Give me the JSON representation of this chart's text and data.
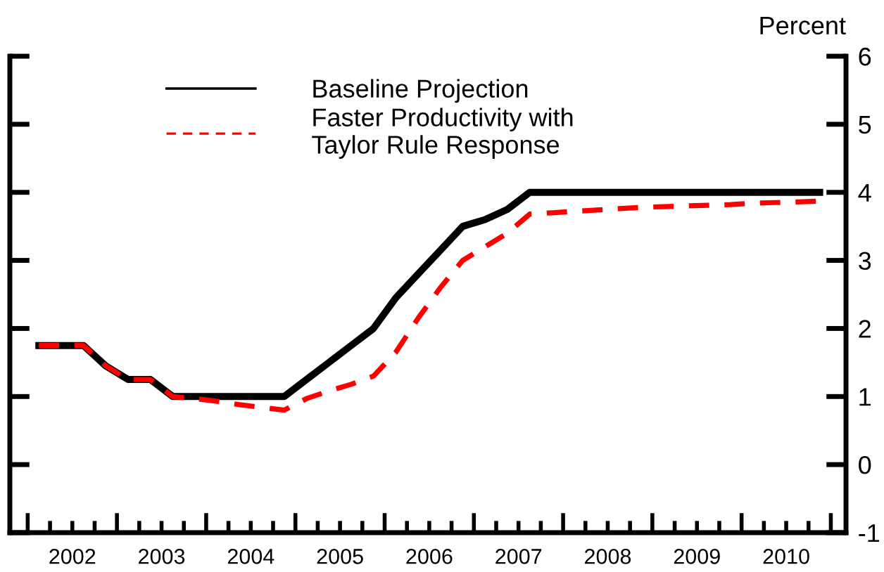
{
  "chart_data": {
    "type": "line",
    "ylabel": "Percent",
    "x": [
      2002.125,
      2002.375,
      2002.625,
      2002.875,
      2003.125,
      2003.375,
      2003.625,
      2003.875,
      2004.125,
      2004.375,
      2004.625,
      2004.875,
      2005.125,
      2005.375,
      2005.625,
      2005.875,
      2006.125,
      2006.375,
      2006.625,
      2006.875,
      2007.125,
      2007.375,
      2007.625,
      2007.875,
      2008.125,
      2008.375,
      2008.625,
      2008.875,
      2009.125,
      2009.375,
      2009.625,
      2009.875,
      2010.125,
      2010.375,
      2010.625,
      2010.875
    ],
    "series": [
      {
        "name": "Baseline Projection",
        "color": "#000000",
        "line_style": "solid",
        "values": [
          1.75,
          1.75,
          1.75,
          1.45,
          1.25,
          1.25,
          1.0,
          1.0,
          1.0,
          1.0,
          1.0,
          1.0,
          1.25,
          1.5,
          1.75,
          2.0,
          2.45,
          2.8,
          3.15,
          3.5,
          3.6,
          3.75,
          4.0,
          4.0,
          4.0,
          4.0,
          4.0,
          4.0,
          4.0,
          4.0,
          4.0,
          4.0,
          4.0,
          4.0,
          4.0,
          4.0
        ]
      },
      {
        "name": "Faster Productivity with\nTaylor Rule Response",
        "color": "#ff0000",
        "line_style": "dashed",
        "values": [
          1.75,
          1.75,
          1.75,
          1.45,
          1.25,
          1.25,
          1.0,
          0.97,
          0.93,
          0.88,
          0.84,
          0.8,
          0.97,
          1.08,
          1.18,
          1.3,
          1.65,
          2.15,
          2.6,
          3.0,
          3.2,
          3.4,
          3.68,
          3.7,
          3.72,
          3.74,
          3.76,
          3.78,
          3.79,
          3.8,
          3.81,
          3.82,
          3.84,
          3.85,
          3.86,
          3.87
        ]
      }
    ],
    "xlim": [
      2001.8,
      2011.17
    ],
    "xticks": [
      {
        "value": 2002,
        "label": null
      },
      {
        "value": 2002.25,
        "label": null
      },
      {
        "value": 2002.5,
        "label": "2002"
      },
      {
        "value": 2002.75,
        "label": null
      },
      {
        "value": 2003,
        "label": null
      },
      {
        "value": 2003.25,
        "label": null
      },
      {
        "value": 2003.5,
        "label": "2003"
      },
      {
        "value": 2003.75,
        "label": null
      },
      {
        "value": 2004,
        "label": null
      },
      {
        "value": 2004.25,
        "label": null
      },
      {
        "value": 2004.5,
        "label": "2004"
      },
      {
        "value": 2004.75,
        "label": null
      },
      {
        "value": 2005,
        "label": null
      },
      {
        "value": 2005.25,
        "label": null
      },
      {
        "value": 2005.5,
        "label": "2005"
      },
      {
        "value": 2005.75,
        "label": null
      },
      {
        "value": 2006,
        "label": null
      },
      {
        "value": 2006.25,
        "label": null
      },
      {
        "value": 2006.5,
        "label": "2006"
      },
      {
        "value": 2006.75,
        "label": null
      },
      {
        "value": 2007,
        "label": null
      },
      {
        "value": 2007.25,
        "label": null
      },
      {
        "value": 2007.5,
        "label": "2007"
      },
      {
        "value": 2007.75,
        "label": null
      },
      {
        "value": 2008,
        "label": null
      },
      {
        "value": 2008.25,
        "label": null
      },
      {
        "value": 2008.5,
        "label": "2008"
      },
      {
        "value": 2008.75,
        "label": null
      },
      {
        "value": 2009,
        "label": null
      },
      {
        "value": 2009.25,
        "label": null
      },
      {
        "value": 2009.5,
        "label": "2009"
      },
      {
        "value": 2009.75,
        "label": null
      },
      {
        "value": 2010,
        "label": null
      },
      {
        "value": 2010.25,
        "label": null
      },
      {
        "value": 2010.5,
        "label": "2010"
      },
      {
        "value": 2010.75,
        "label": null
      },
      {
        "value": 2011,
        "label": null
      }
    ],
    "ylim": [
      -1,
      6
    ],
    "yticks": [
      -1,
      0,
      1,
      2,
      3,
      4,
      5,
      6
    ],
    "grid": false,
    "legend": "top left",
    "marker": "none"
  }
}
